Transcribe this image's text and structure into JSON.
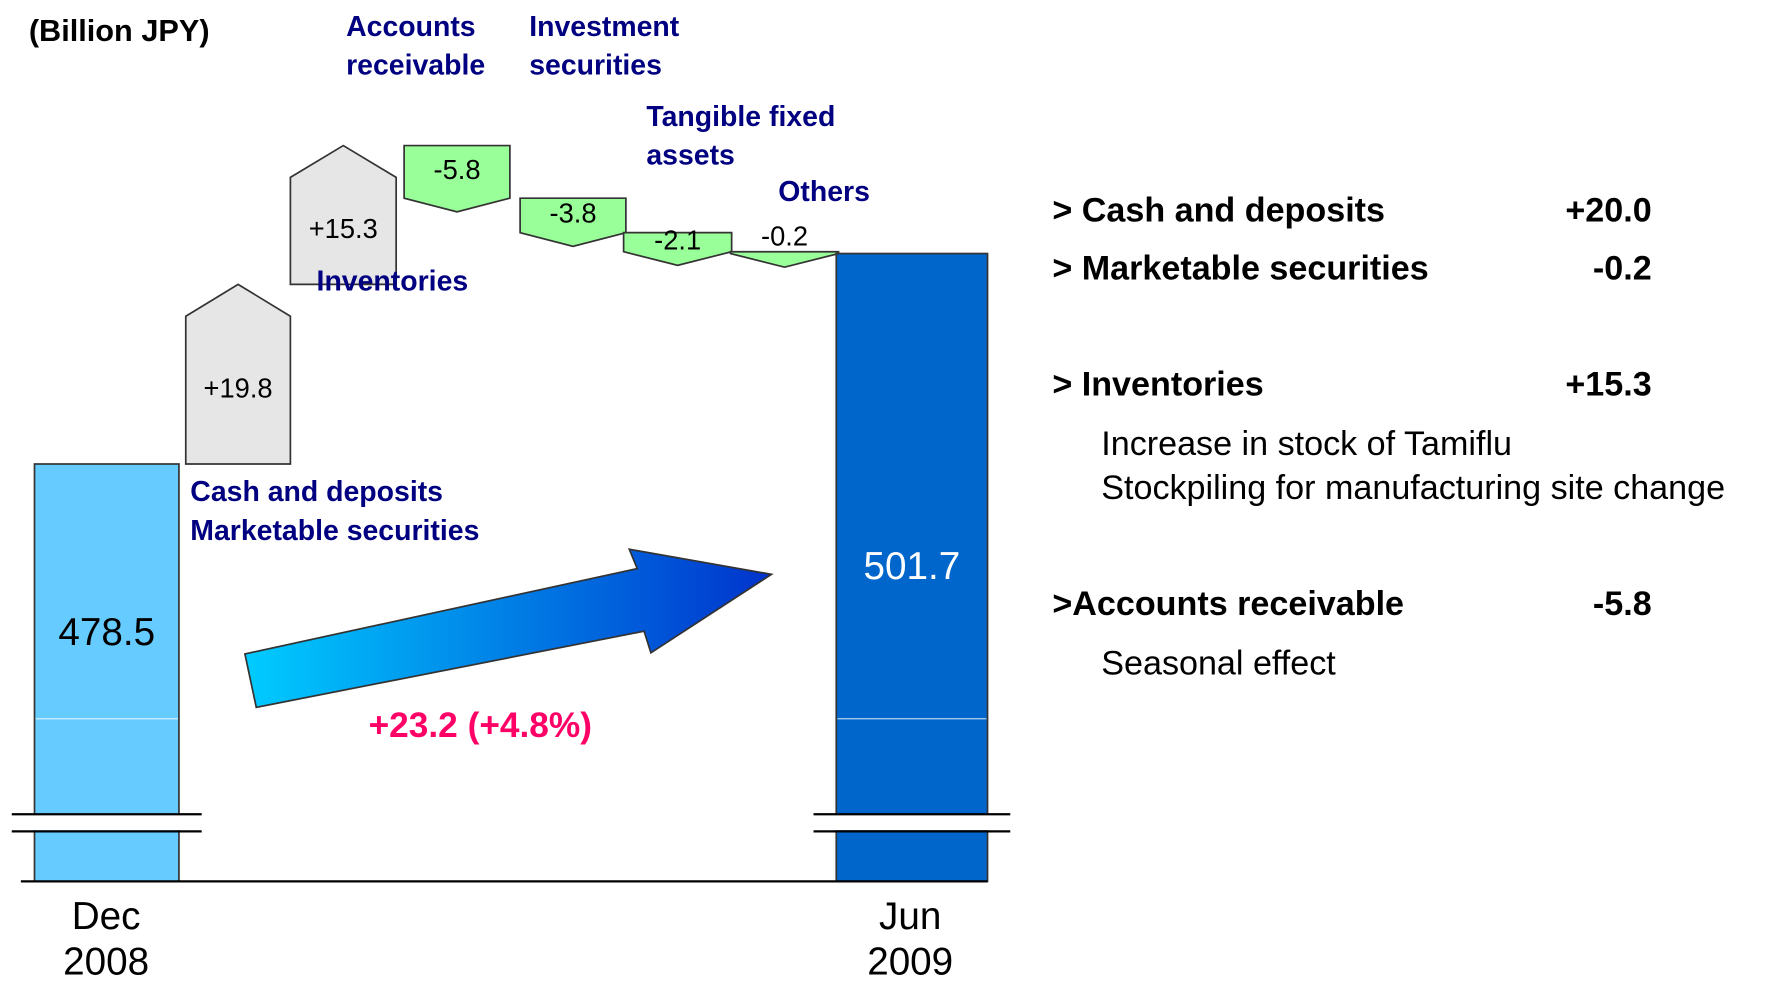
{
  "chart_data": {
    "type": "waterfall",
    "unit": "(Billion JPY)",
    "categories": [
      [
        "Dec",
        "2008"
      ],
      [
        "Cash and deposits",
        "Marketable securities"
      ],
      [
        "Inventories"
      ],
      [
        "Accounts",
        "receivable"
      ],
      [
        "Investment",
        "securities"
      ],
      [
        "Tangible fixed",
        "assets"
      ],
      [
        "Others"
      ],
      [
        "Jun",
        "2009"
      ]
    ],
    "measures": [
      "total",
      "relative",
      "relative",
      "relative",
      "relative",
      "relative",
      "relative",
      "total"
    ],
    "values": [
      478.5,
      19.8,
      15.3,
      -5.8,
      -3.8,
      -2.1,
      -0.2,
      501.7
    ],
    "value_labels": [
      "478.5",
      "+19.8",
      "+15.3",
      "-5.8",
      "-3.8",
      "-2.1",
      "-0.2",
      "501.7"
    ],
    "colors": {
      "start": "#66ccff",
      "end": "#0066cc",
      "increase": "#e6e6e6",
      "decrease": "#99ff99"
    },
    "annotation": "+23.2 (+4.8%)"
  },
  "notes": [
    {
      "label": "> Cash and deposits",
      "value": "+20.0",
      "details": []
    },
    {
      "label": "> Marketable securities",
      "value": "-0.2",
      "details": []
    },
    {
      "label": "> Inventories",
      "value": "+15.3",
      "details": [
        "Increase in stock of Tamiflu",
        "Stockpiling for manufacturing site change"
      ]
    },
    {
      "label": ">Accounts receivable",
      "value": "-5.8",
      "details": [
        "Seasonal effect"
      ]
    }
  ]
}
